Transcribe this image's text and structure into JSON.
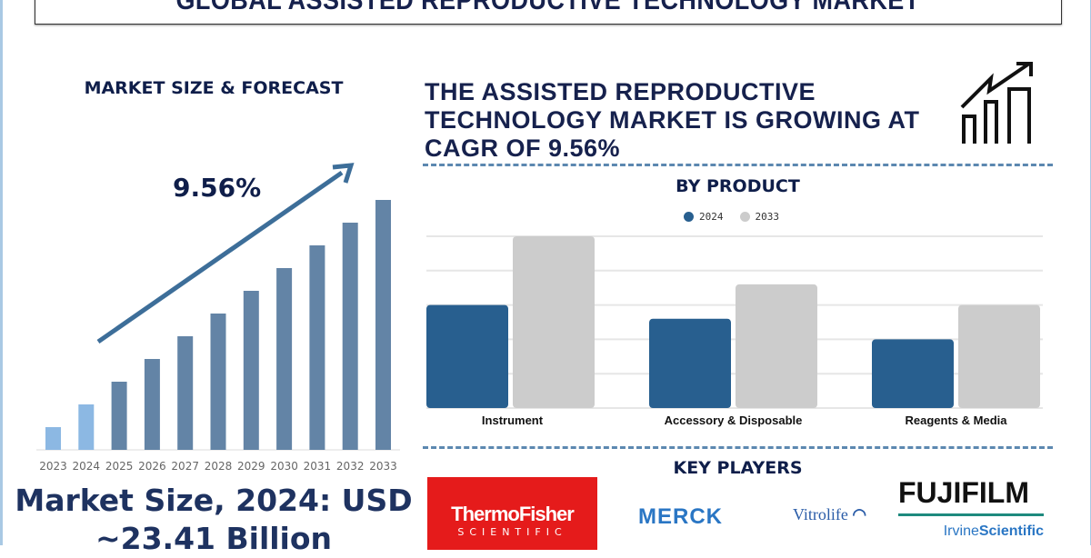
{
  "title": "GLOBAL ASSISTED REPRODUCTIVE TECHNOLOGY MARKET",
  "left_panel": {
    "heading": "MARKET SIZE & FORECAST",
    "cagr_label": "9.56%",
    "market_size_line1": "Market Size, 2024: USD",
    "market_size_line2": "~23.41 Billion"
  },
  "headline": {
    "line1": "THE ASSISTED REPRODUCTIVE",
    "line2": "TECHNOLOGY MARKET IS GROWING AT",
    "line3": "CAGR OF 9.56%",
    "icon": "growth-chart-arrow-icon"
  },
  "by_product": {
    "heading": "BY PRODUCT"
  },
  "key_players": {
    "heading": "KEY PLAYERS",
    "logos": [
      "ThermoFisher SCIENTIFIC",
      "MERCK",
      "Vitrolife",
      "FUJIFILM IrvineScientific"
    ]
  },
  "colors": {
    "bar_hist": "#8cb8e3",
    "bar_forecast": "#6384a6",
    "series_2024": "#285f8f",
    "series_2033": "#cccccc",
    "arrow": "#3d6e99",
    "text": "#0f1e4a"
  },
  "chart_data": [
    {
      "type": "bar",
      "title": "MARKET SIZE & FORECAST",
      "categories": [
        "2023",
        "2024",
        "2025",
        "2026",
        "2027",
        "2028",
        "2029",
        "2030",
        "2031",
        "2032",
        "2033"
      ],
      "values": [
        1,
        2,
        3,
        4,
        5,
        6,
        7,
        8,
        9,
        10,
        11
      ],
      "annotation": "9.56%",
      "grid": false,
      "ylim": [
        0,
        11
      ]
    },
    {
      "type": "bar",
      "title": "BY PRODUCT",
      "categories": [
        "Instrument",
        "Accessory & Disposable",
        "Reagents & Media"
      ],
      "series": [
        {
          "name": "2024",
          "values": [
            3.0,
            2.6,
            2.0
          ]
        },
        {
          "name": "2033",
          "values": [
            5.0,
            3.6,
            3.0
          ]
        }
      ],
      "ylim": [
        0,
        5
      ],
      "grid": true,
      "legend": "top-center"
    }
  ]
}
